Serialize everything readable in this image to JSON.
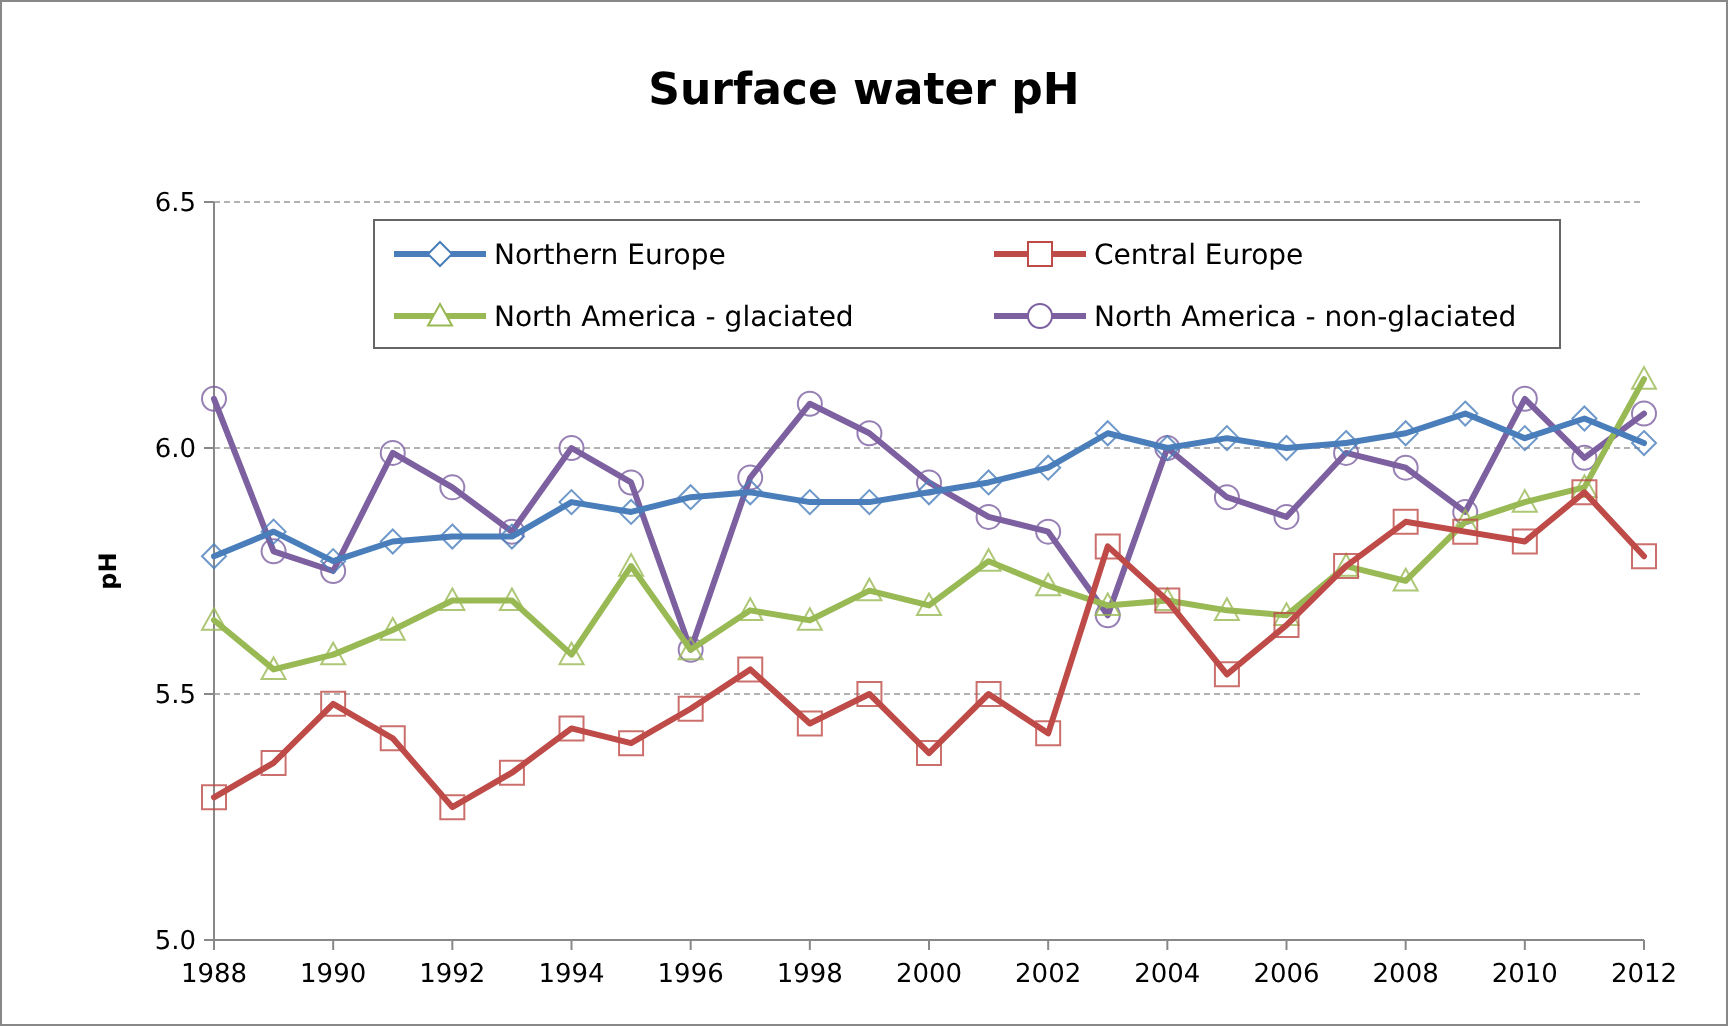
{
  "chart_data": {
    "type": "line",
    "title": "Surface water pH",
    "ylabel": "pH",
    "x": [
      1988,
      1989,
      1990,
      1991,
      1992,
      1993,
      1994,
      1995,
      1996,
      1997,
      1998,
      1999,
      2000,
      2001,
      2002,
      2003,
      2004,
      2005,
      2006,
      2007,
      2008,
      2009,
      2010,
      2011,
      2012
    ],
    "xlim": [
      1988,
      2012
    ],
    "xticks": [
      1988,
      1990,
      1992,
      1994,
      1996,
      1998,
      2000,
      2002,
      2004,
      2006,
      2008,
      2010,
      2012
    ],
    "ylim": [
      5.0,
      6.5
    ],
    "yticks": [
      {
        "value": 5.0,
        "label": "5.0"
      },
      5.5,
      {
        "value": 6.0,
        "label": "6.0"
      },
      6.5
    ],
    "grid": "y",
    "legend": "top",
    "line_style": "solid",
    "series": [
      {
        "name": "Northern Europe",
        "color": "#4a7ebb",
        "marker": "diamond",
        "values": [
          5.78,
          5.83,
          5.77,
          5.81,
          5.82,
          5.82,
          5.89,
          5.87,
          5.9,
          5.91,
          5.89,
          5.89,
          5.91,
          5.93,
          5.96,
          6.03,
          6.0,
          6.02,
          6.0,
          6.01,
          6.03,
          6.07,
          6.02,
          6.06,
          6.01
        ]
      },
      {
        "name": "Central Europe",
        "color": "#be4b48",
        "marker": "square",
        "values": [
          5.29,
          5.36,
          5.48,
          5.41,
          5.27,
          5.34,
          5.43,
          5.4,
          5.47,
          5.55,
          5.44,
          5.5,
          5.38,
          5.5,
          5.42,
          5.8,
          5.69,
          5.54,
          5.64,
          5.76,
          5.85,
          5.83,
          5.81,
          5.91,
          5.78
        ]
      },
      {
        "name": "North America - glaciated",
        "color": "#98b954",
        "marker": "triangle",
        "values": [
          5.65,
          5.55,
          5.58,
          5.63,
          5.69,
          5.69,
          5.58,
          5.76,
          5.59,
          5.67,
          5.65,
          5.71,
          5.68,
          5.77,
          5.72,
          5.68,
          5.69,
          5.67,
          5.66,
          5.76,
          5.73,
          5.85,
          5.89,
          5.92,
          6.14
        ]
      },
      {
        "name": "North America - non-glaciated",
        "color": "#7d60a0",
        "marker": "circle",
        "values": [
          6.1,
          5.79,
          5.75,
          5.99,
          5.92,
          5.83,
          6.0,
          5.93,
          5.59,
          5.94,
          6.09,
          6.03,
          5.93,
          5.86,
          5.83,
          5.66,
          6.0,
          5.9,
          5.86,
          5.99,
          5.96,
          5.87,
          6.1,
          5.98,
          6.07
        ]
      }
    ]
  }
}
